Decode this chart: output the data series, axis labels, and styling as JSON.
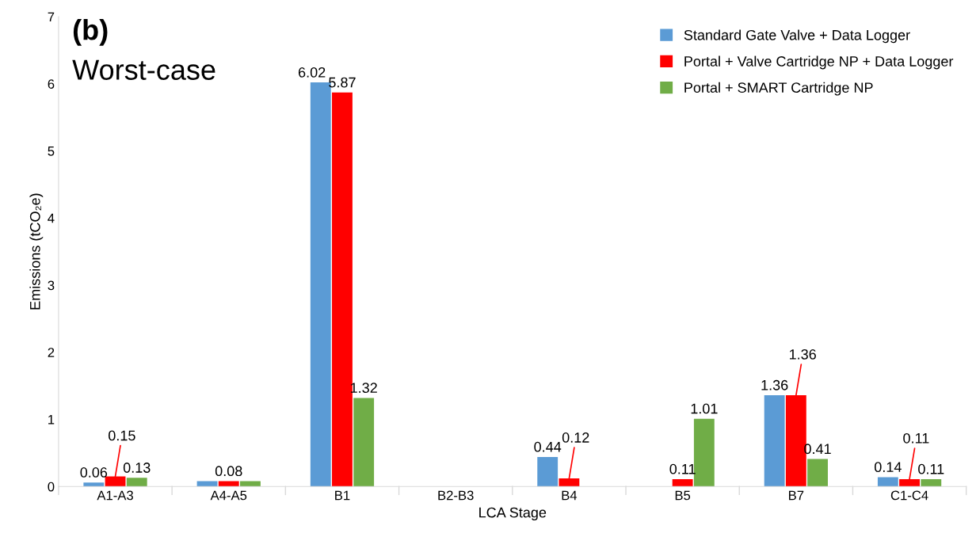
{
  "chart_data": {
    "type": "bar",
    "xlabel": "LCA Stage",
    "ylabel": "Emissions (tCO₂e)",
    "categories": [
      "A1-A3",
      "A4-A5",
      "B1",
      "B2-B3",
      "B4",
      "B5",
      "B7",
      "C1-C4"
    ],
    "series": [
      {
        "name": "Standard Gate Valve + Data Logger",
        "color": "#5b9bd5",
        "values": [
          0.06,
          0.08,
          6.02,
          0,
          0.44,
          0,
          1.36,
          0.14
        ],
        "value_labels": [
          "0.06",
          null,
          "6.02",
          null,
          "0.44",
          null,
          "1.36",
          "0.14"
        ]
      },
      {
        "name": "Portal + Valve Cartridge NP + Data Logger",
        "color": "#ff0000",
        "values": [
          0.15,
          0.08,
          5.87,
          0,
          0.12,
          0.11,
          1.36,
          0.11
        ],
        "value_labels": [
          "0.15",
          "0.08",
          "5.87",
          null,
          "0.12",
          "0.11",
          "1.36",
          "0.11"
        ]
      },
      {
        "name": "Portal + SMART Cartridge NP",
        "color": "#70ad47",
        "values": [
          0.13,
          0.08,
          1.32,
          0,
          0,
          1.01,
          0.41,
          0.11
        ],
        "value_labels": [
          "0.13",
          null,
          "1.32",
          null,
          null,
          "1.01",
          "0.41",
          "0.11"
        ]
      }
    ],
    "ylim": [
      0,
      7
    ],
    "yticks": [
      0,
      1,
      2,
      3,
      4,
      5,
      6,
      7
    ],
    "grid": false,
    "legend": "top right",
    "annotations": [
      "(b)",
      "Worst-case"
    ]
  }
}
